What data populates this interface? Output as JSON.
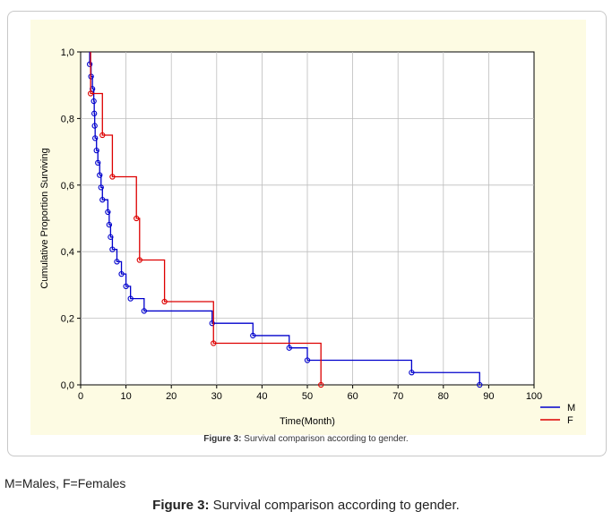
{
  "chart_data": {
    "type": "line",
    "xlabel": "Time(Month)",
    "ylabel": "Cumulative Proportion Surviving",
    "xlim": [
      0,
      100
    ],
    "ylim": [
      0,
      1
    ],
    "x_ticks": [
      "0",
      "10",
      "20",
      "30",
      "40",
      "50",
      "60",
      "70",
      "80",
      "90",
      "100"
    ],
    "y_ticks": [
      "0,0",
      "0,2",
      "0,4",
      "0,6",
      "0,8",
      "1,0"
    ],
    "legend_position": "bottom-right",
    "grid": true,
    "series": [
      {
        "name": "M",
        "color": "#0000cc",
        "steps": [
          [
            2,
            1.0
          ],
          [
            2,
            0.963
          ],
          [
            2.3,
            0.926
          ],
          [
            2.6,
            0.889
          ],
          [
            2.9,
            0.852
          ],
          [
            3,
            0.815
          ],
          [
            3.1,
            0.778
          ],
          [
            3.2,
            0.741
          ],
          [
            3.5,
            0.704
          ],
          [
            3.8,
            0.667
          ],
          [
            4.2,
            0.63
          ],
          [
            4.5,
            0.593
          ],
          [
            4.8,
            0.556
          ],
          [
            6,
            0.519
          ],
          [
            6.3,
            0.481
          ],
          [
            6.6,
            0.444
          ],
          [
            7,
            0.407
          ],
          [
            8,
            0.37
          ],
          [
            9,
            0.333
          ],
          [
            10,
            0.296
          ],
          [
            11,
            0.259
          ],
          [
            14,
            0.222
          ],
          [
            29,
            0.185
          ],
          [
            38,
            0.148
          ],
          [
            46,
            0.111
          ],
          [
            50,
            0.074
          ],
          [
            73,
            0.037
          ],
          [
            88,
            0.0
          ]
        ],
        "censored": [
          [
            2,
            0.963
          ],
          [
            2.3,
            0.926
          ],
          [
            2.6,
            0.889
          ],
          [
            2.9,
            0.852
          ],
          [
            3,
            0.815
          ],
          [
            3.1,
            0.778
          ],
          [
            3.2,
            0.741
          ],
          [
            3.5,
            0.704
          ],
          [
            3.8,
            0.667
          ],
          [
            4.2,
            0.63
          ],
          [
            4.5,
            0.593
          ],
          [
            4.8,
            0.556
          ],
          [
            6,
            0.519
          ],
          [
            6.3,
            0.481
          ],
          [
            6.6,
            0.444
          ],
          [
            7,
            0.407
          ],
          [
            8,
            0.37
          ],
          [
            9,
            0.333
          ],
          [
            10,
            0.296
          ],
          [
            11,
            0.259
          ],
          [
            14,
            0.222
          ],
          [
            29,
            0.185
          ],
          [
            38,
            0.148
          ],
          [
            46,
            0.111
          ],
          [
            50,
            0.074
          ],
          [
            73,
            0.037
          ],
          [
            88,
            0.0
          ]
        ]
      },
      {
        "name": "F",
        "color": "#dd0000",
        "steps": [
          [
            2.2,
            1.0
          ],
          [
            2.2,
            0.875
          ],
          [
            4.8,
            0.75
          ],
          [
            7,
            0.625
          ],
          [
            12.3,
            0.5
          ],
          [
            13,
            0.375
          ],
          [
            18.5,
            0.25
          ],
          [
            29.3,
            0.125
          ],
          [
            53,
            0.0
          ]
        ],
        "censored": [
          [
            2.2,
            0.875
          ],
          [
            4.8,
            0.75
          ],
          [
            7,
            0.625
          ],
          [
            12.3,
            0.5
          ],
          [
            13,
            0.375
          ],
          [
            18.5,
            0.25
          ],
          [
            29.3,
            0.125
          ],
          [
            53,
            0.0
          ]
        ]
      }
    ]
  },
  "inner_caption": {
    "label": "Figure 3:",
    "text": " Survival comparison according to gender."
  },
  "note": "M=Males, F=Females",
  "caption": {
    "label": "Figure 3:",
    "text": " Survival comparison according to gender."
  }
}
